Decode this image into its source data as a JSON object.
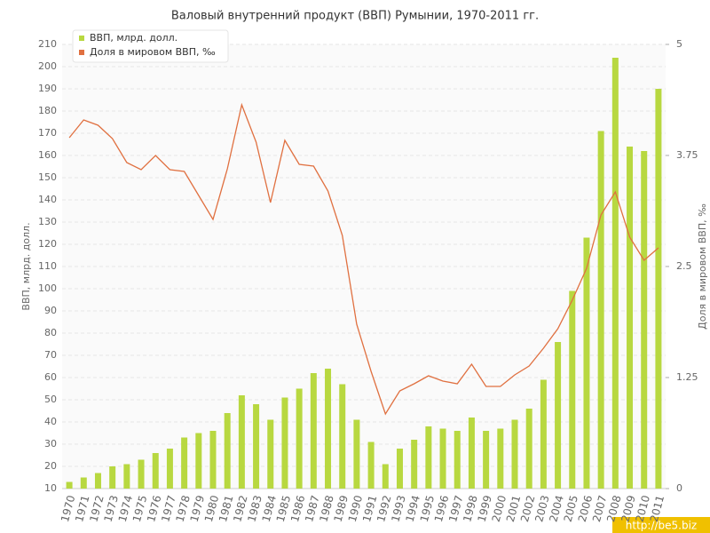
{
  "chart_data": {
    "type": "bar-line",
    "title": "Валовый внутренний продукт (ВВП) Румынии, 1970-2011 гг.",
    "ylabel": "ВВП, млрд. долл.",
    "y2label": "Доля в мировом ВВП, ‰",
    "categories": [
      "1970",
      "1971",
      "1972",
      "1973",
      "1974",
      "1975",
      "1976",
      "1977",
      "1978",
      "1979",
      "1980",
      "1981",
      "1982",
      "1983",
      "1984",
      "1985",
      "1986",
      "1987",
      "1988",
      "1989",
      "1990",
      "1991",
      "1992",
      "1993",
      "1994",
      "1995",
      "1996",
      "1997",
      "1998",
      "1999",
      "2000",
      "2001",
      "2002",
      "2003",
      "2004",
      "2005",
      "2006",
      "2007",
      "2008",
      "2009",
      "2010",
      "2011"
    ],
    "series": [
      {
        "name": "ВВП, млрд. долл.",
        "type": "bar",
        "color": "#b8d840",
        "values": [
          13,
          15,
          17,
          20,
          21,
          23,
          26,
          28,
          33,
          35,
          36,
          44,
          52,
          48,
          41,
          51,
          55,
          62,
          64,
          57,
          41,
          31,
          21,
          28,
          32,
          38,
          37,
          36,
          42,
          36,
          37,
          41,
          46,
          59,
          76,
          99,
          123,
          171,
          204,
          164,
          162,
          190
        ]
      },
      {
        "name": "Доля в мировом ВВП, ‰",
        "type": "line",
        "axis": "y2",
        "color": "#e07040",
        "values": [
          3.95,
          4.15,
          4.09,
          3.94,
          3.67,
          3.59,
          3.75,
          3.59,
          3.57,
          3.3,
          3.03,
          3.6,
          4.32,
          3.9,
          3.22,
          3.92,
          3.65,
          3.63,
          3.35,
          2.85,
          1.85,
          1.32,
          0.84,
          1.1,
          1.18,
          1.27,
          1.21,
          1.18,
          1.4,
          1.15,
          1.15,
          1.28,
          1.38,
          1.58,
          1.8,
          2.12,
          2.48,
          3.08,
          3.34,
          2.83,
          2.57,
          2.71
        ]
      }
    ],
    "ylim": [
      10,
      210
    ],
    "yticks": [
      10,
      20,
      30,
      40,
      50,
      60,
      70,
      80,
      90,
      100,
      110,
      120,
      130,
      140,
      150,
      160,
      170,
      180,
      190,
      200,
      210
    ],
    "y2lim": [
      0,
      5
    ],
    "y2ticks": [
      0,
      1.25,
      2.5,
      3.75,
      5
    ],
    "grid": true,
    "legend": "top-left"
  },
  "watermark": "http://be5.biz"
}
